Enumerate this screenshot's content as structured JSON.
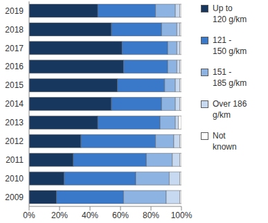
{
  "chart_data": {
    "type": "bar",
    "orientation": "horizontal",
    "stacked": true,
    "grid": false,
    "legend": "right",
    "categories": [
      "2019",
      "2018",
      "2017",
      "2016",
      "2015",
      "2014",
      "2013",
      "2012",
      "2011",
      "2010",
      "2009"
    ],
    "series": [
      {
        "name": "Up to 120 g/km",
        "color": "#17375e",
        "values": [
          45,
          54,
          61,
          62,
          58,
          54,
          45,
          34,
          29,
          23,
          18
        ]
      },
      {
        "name": "121 - 150 g/km",
        "color": "#3a78c9",
        "values": [
          38,
          33,
          30,
          29,
          31,
          33,
          41,
          49,
          48,
          47,
          44
        ]
      },
      {
        "name": "151 - 185 g/km",
        "color": "#8db3e2",
        "values": [
          13,
          10,
          6,
          6,
          7,
          9,
          10,
          12,
          17,
          22,
          28
        ]
      },
      {
        "name": "Over 186 g/km",
        "color": "#c6d9f1",
        "values": [
          3,
          2,
          2,
          2,
          3,
          3,
          2,
          4,
          5,
          7,
          9
        ]
      },
      {
        "name": "Not known",
        "color": "#ffffff",
        "values": [
          1,
          1,
          1,
          1,
          1,
          1,
          2,
          1,
          1,
          1,
          1
        ]
      }
    ],
    "xlim": [
      0,
      100
    ],
    "xticks": [
      {
        "value": 0,
        "label": "0%"
      },
      {
        "value": 20,
        "label": "20%"
      },
      {
        "value": 40,
        "label": "40%"
      },
      {
        "value": 60,
        "label": "60%"
      },
      {
        "value": 80,
        "label": "80%"
      },
      {
        "value": 100,
        "label": "100%"
      }
    ]
  }
}
